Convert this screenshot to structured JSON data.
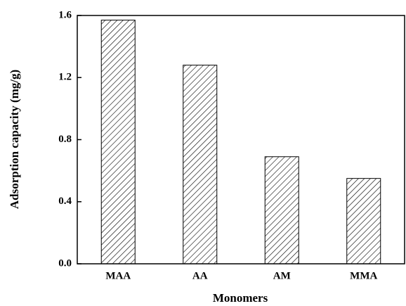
{
  "chart_data": {
    "type": "bar",
    "x_label": "Monomers",
    "y_label": "Adsorption capacity (mg/g)",
    "categories": [
      "MAA",
      "AA",
      "AM",
      "MMA"
    ],
    "values": [
      1.57,
      1.28,
      0.69,
      0.55
    ],
    "color": "#000000",
    "ylim": [
      0,
      1.6
    ],
    "yticks": [
      {
        "value": 0,
        "label": "0.0"
      },
      0.4,
      0.8,
      1.2,
      1.6
    ]
  }
}
